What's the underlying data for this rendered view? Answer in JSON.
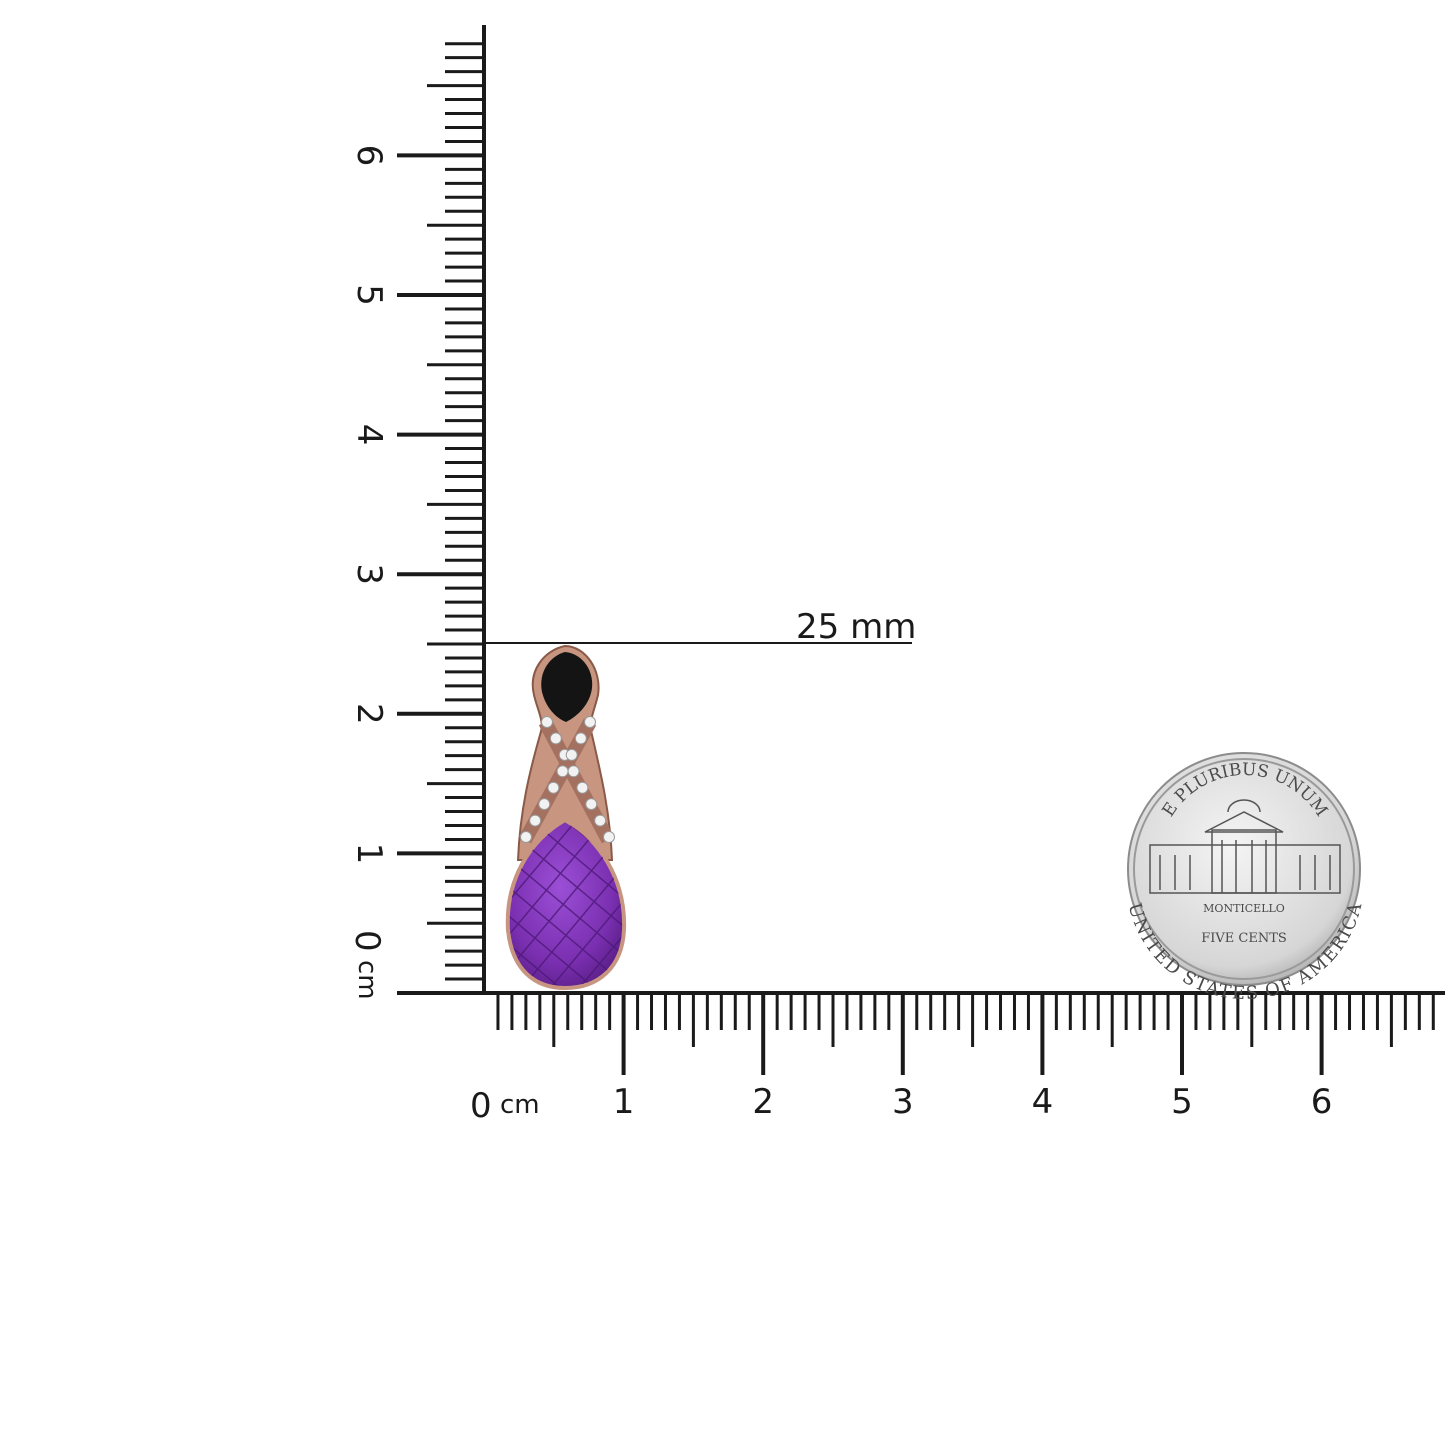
{
  "rulers": {
    "unit": "cm",
    "horizontal": {
      "zero_label": "0",
      "unit_label": "cm",
      "labels": [
        "1",
        "2",
        "3",
        "4",
        "5",
        "6"
      ]
    },
    "vertical": {
      "zero_label": "0",
      "unit_label": "cm",
      "labels": [
        "1",
        "2",
        "3",
        "4",
        "5",
        "6"
      ]
    },
    "max_cm": 6.8
  },
  "measurement": {
    "label": "25 mm",
    "value_mm": 25
  },
  "pendant": {
    "stone_color": "#7a2fb0",
    "top_stone_color": "#141414",
    "metal_color": "#c89580"
  },
  "coin": {
    "top": "E PLURIBUS UNUM",
    "building": "MONTICELLO",
    "denomination": "FIVE CENTS",
    "bottom": "UNITED STATES OF AMERICA"
  },
  "colors": {
    "ruler": "#1a1a1a",
    "background": "#ffffff"
  }
}
